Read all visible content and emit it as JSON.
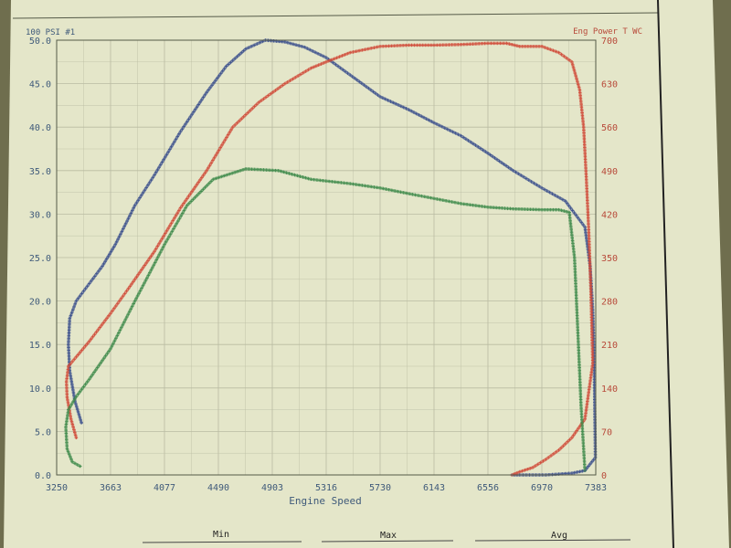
{
  "colors": {
    "paper": "#e4e6c9",
    "grid": "#b9bba2",
    "frame": "#555a48",
    "axis_text": "#3f5a7a",
    "right_axis_text": "#b84a3a",
    "series_blue": "#3a4f8c",
    "series_red": "#d04a38",
    "series_green": "#3e8a4a"
  },
  "chart_data": {
    "type": "line",
    "xlabel": "Engine Speed",
    "left_axis_title": "100 PSI #1",
    "right_axis_title": "Eng Power T WC",
    "xlim": [
      3250,
      7383
    ],
    "ylim_left": [
      0,
      50
    ],
    "ylim_right": [
      0,
      700
    ],
    "x_ticks": [
      "3250",
      "3663",
      "4077",
      "4490",
      "4903",
      "5316",
      "5730",
      "6143",
      "6556",
      "6970",
      "7383"
    ],
    "y_ticks_left": [
      "0.0",
      "5.0",
      "10.0",
      "15.0",
      "20.0",
      "25.0",
      "30.0",
      "35.0",
      "40.0",
      "45.0",
      "50.0"
    ],
    "y_ticks_right": [
      "0",
      "70",
      "140",
      "210",
      "280",
      "350",
      "420",
      "490",
      "560",
      "630",
      "700"
    ],
    "grid": true,
    "series": [
      {
        "color": "blue",
        "axis": "left",
        "x": [
          3440,
          3390,
          3350,
          3340,
          3350,
          3400,
          3500,
          3600,
          3700,
          3850,
          4000,
          4200,
          4400,
          4550,
          4700,
          4850,
          5000,
          5150,
          5316,
          5500,
          5730,
          5950,
          6143,
          6350,
          6556,
          6750,
          6970,
          7150,
          7300,
          7340,
          7360,
          7370,
          7375,
          7380,
          7300,
          7200,
          7100,
          7000,
          6900,
          6800,
          6740
        ],
        "y": [
          6.0,
          8.5,
          12.0,
          15.0,
          18.0,
          20.0,
          22.0,
          24.0,
          26.5,
          31.0,
          34.5,
          39.5,
          44.0,
          47.0,
          49.0,
          50.0,
          49.8,
          49.2,
          48.0,
          46.0,
          43.5,
          42.0,
          40.5,
          39.0,
          37.0,
          35.0,
          33.0,
          31.5,
          28.5,
          24.0,
          19.0,
          14.0,
          8.0,
          2.0,
          0.5,
          0.2,
          0.1,
          0.0,
          0.0,
          0.0,
          0.0
        ]
      },
      {
        "color": "red",
        "axis": "right",
        "x": [
          3400,
          3360,
          3330,
          3325,
          3340,
          3400,
          3500,
          3663,
          3800,
          4000,
          4200,
          4400,
          4600,
          4800,
          5000,
          5200,
          5316,
          5500,
          5730,
          5950,
          6143,
          6350,
          6556,
          6700,
          6800,
          6970,
          7100,
          7200,
          7260,
          7290,
          7310,
          7330,
          7345,
          7360,
          7300,
          7200,
          7100,
          7000,
          6900,
          6800,
          6740
        ],
        "y": [
          60,
          90,
          125,
          150,
          175,
          190,
          215,
          260,
          300,
          360,
          430,
          490,
          560,
          600,
          630,
          655,
          665,
          680,
          690,
          692,
          692,
          693,
          695,
          695,
          690,
          690,
          680,
          665,
          620,
          560,
          480,
          390,
          300,
          180,
          90,
          60,
          40,
          25,
          12,
          5,
          0
        ]
      },
      {
        "color": "green",
        "axis": "left",
        "x": [
          3430,
          3370,
          3330,
          3320,
          3340,
          3400,
          3500,
          3663,
          3850,
          4077,
          4250,
          4450,
          4700,
          4950,
          5200,
          5500,
          5730,
          6000,
          6143,
          6350,
          6556,
          6750,
          6970,
          7100,
          7180,
          7220,
          7250,
          7270,
          7290,
          7300
        ],
        "y": [
          1.0,
          1.5,
          3.0,
          5.5,
          7.5,
          9.0,
          11.0,
          14.5,
          20.0,
          26.5,
          31.0,
          34.0,
          35.2,
          35.0,
          34.0,
          33.5,
          33.0,
          32.2,
          31.8,
          31.2,
          30.8,
          30.6,
          30.5,
          30.5,
          30.2,
          25.0,
          15.0,
          8.0,
          3.0,
          0.5
        ]
      }
    ]
  },
  "footer": {
    "col1": "Min",
    "col2": "Max",
    "col3": "Avg"
  }
}
